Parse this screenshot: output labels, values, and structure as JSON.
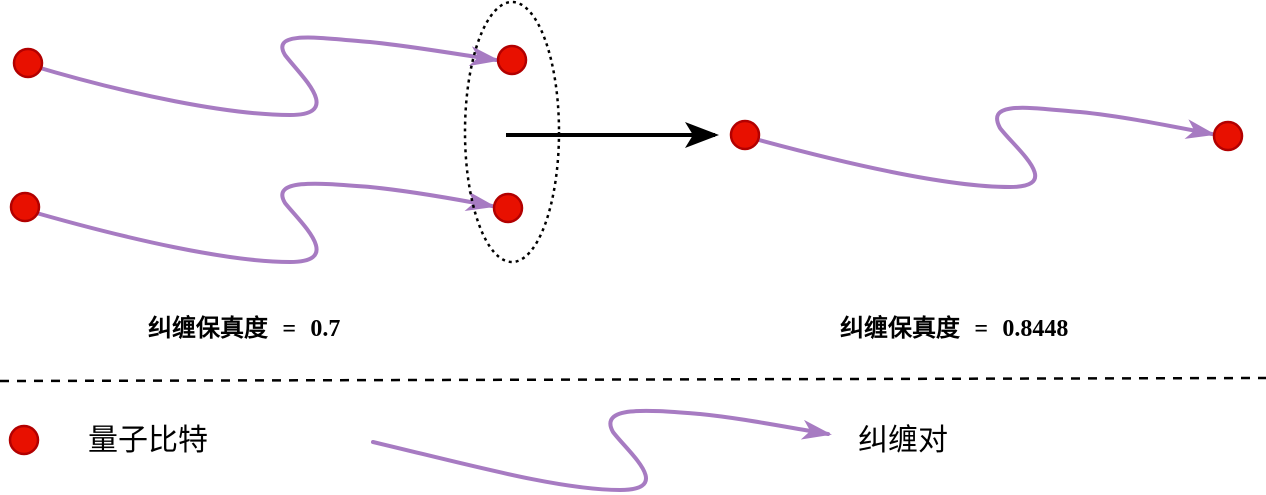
{
  "colors": {
    "qubit_fill": "#e81000",
    "entangle_link": "#a77bc2",
    "arrow": "#000000",
    "divider": "#000000",
    "ellipse": "#000000"
  },
  "before": {
    "fidelity_label": "纠缠保真度",
    "equals": "=",
    "fidelity_value": "0.7"
  },
  "after": {
    "fidelity_label": "纠缠保真度",
    "equals": "=",
    "fidelity_value": "0.8448"
  },
  "legend": {
    "qubit_label": "量子比特",
    "pair_label": "纠缠对"
  },
  "icons": {
    "qubit": "qubit-icon",
    "entangled_pair": "entangled-pair-icon",
    "purification_arrow": "arrow-right-icon"
  }
}
